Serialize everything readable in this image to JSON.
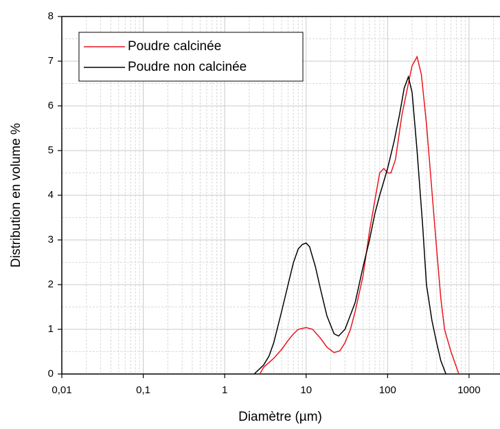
{
  "chart_data": {
    "type": "line",
    "x_label": "Diamètre (µm)",
    "y_label": "Distribution en volume %",
    "xscale": "log",
    "xlim": [
      0.01,
      2400
    ],
    "ylim": [
      0,
      8
    ],
    "xticks": [
      {
        "value": 0.01,
        "label": "0,01"
      },
      {
        "value": 0.1,
        "label": "0,1"
      },
      1,
      10,
      100,
      1000
    ],
    "yticks": [
      0,
      1,
      2,
      3,
      4,
      5,
      6,
      7,
      8
    ],
    "grid": true,
    "minor_grid": true,
    "legend": "upper left",
    "series": [
      {
        "name": "Poudre calcinée",
        "color": "#e8141c",
        "x": [
          2.7,
          3,
          4,
          5,
          6,
          7,
          8,
          10,
          12,
          15,
          18,
          22,
          26,
          30,
          35,
          40,
          50,
          60,
          70,
          80,
          90,
          100,
          110,
          125,
          150,
          180,
          200,
          230,
          260,
          300,
          350,
          400,
          450,
          500,
          600,
          750
        ],
        "values": [
          0,
          0.15,
          0.35,
          0.55,
          0.75,
          0.9,
          1.0,
          1.04,
          1.0,
          0.8,
          0.6,
          0.48,
          0.52,
          0.7,
          1.0,
          1.4,
          2.2,
          3.2,
          3.9,
          4.5,
          4.6,
          4.5,
          4.5,
          4.8,
          5.8,
          6.5,
          6.9,
          7.1,
          6.7,
          5.6,
          4.1,
          2.8,
          1.7,
          1.0,
          0.5,
          0
        ]
      },
      {
        "name": "Poudre non calcinée",
        "color": "#000000",
        "x": [
          2.3,
          3,
          3.5,
          4,
          5,
          6,
          7,
          8,
          9,
          10,
          11,
          13,
          15,
          18,
          22,
          25,
          30,
          40,
          50,
          60,
          70,
          80,
          100,
          120,
          140,
          160,
          180,
          200,
          230,
          270,
          300,
          350,
          400,
          450,
          520
        ],
        "values": [
          0,
          0.2,
          0.4,
          0.7,
          1.4,
          2.0,
          2.5,
          2.8,
          2.9,
          2.93,
          2.85,
          2.4,
          1.9,
          1.3,
          0.9,
          0.85,
          1.0,
          1.6,
          2.4,
          3.0,
          3.6,
          4.0,
          4.6,
          5.2,
          5.8,
          6.4,
          6.65,
          6.3,
          5.0,
          3.3,
          2.0,
          1.2,
          0.7,
          0.3,
          0
        ]
      }
    ]
  }
}
